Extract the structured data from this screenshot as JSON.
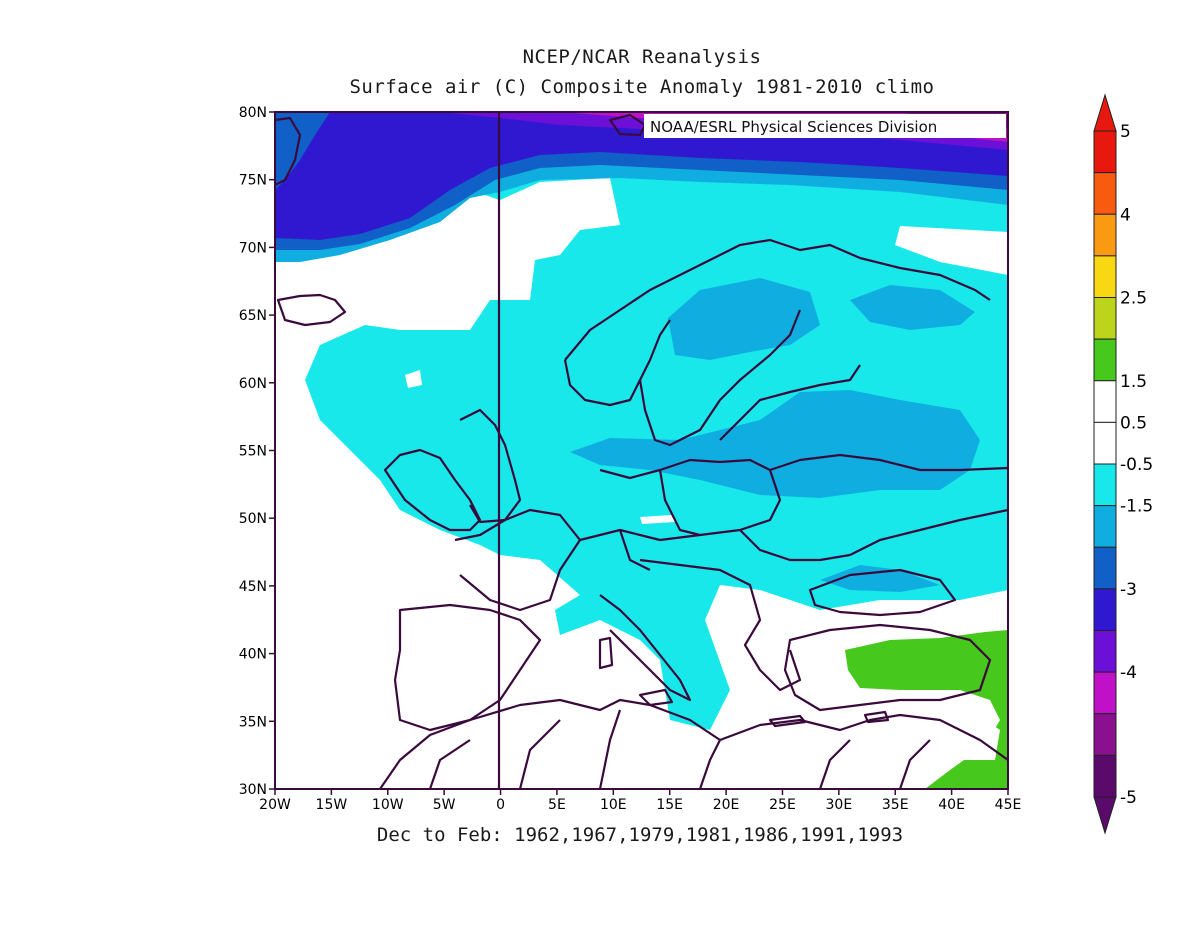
{
  "map": {
    "title": "NCEP/NCAR Reanalysis",
    "subtitle": "Surface air (C) Composite Anomaly 1981-2010 climo",
    "credit": "NOAA/ESRL Physical Sciences Division",
    "caption": "Dec to Feb: 1962,1967,1979,1981,1986,1991,1993",
    "lat_labels": [
      "80N",
      "75N",
      "70N",
      "65N",
      "60N",
      "55N",
      "50N",
      "45N",
      "40N",
      "35N",
      "30N"
    ],
    "lon_labels": [
      "20W",
      "15W",
      "10W",
      "5W",
      "0",
      "5E",
      "10E",
      "15E",
      "20E",
      "25E",
      "30E",
      "35E",
      "40E",
      "45E"
    ],
    "extent": {
      "lon_min": -20,
      "lon_max": 45,
      "lat_min": 30,
      "lat_max": 80
    }
  },
  "legend": {
    "labels": [
      "5",
      "4",
      "2.5",
      "1.5",
      "0.5",
      "-0.5",
      "-1.5",
      "-3",
      "-4",
      "-5"
    ],
    "colors": [
      "#e8180f",
      "#f85a10",
      "#fa9a12",
      "#f8d812",
      "#bcd41c",
      "#46c81c",
      "#ffffff",
      "#ffffff",
      "#18e8ea",
      "#10aee0",
      "#1060c8",
      "#3018d0",
      "#6c10d8",
      "#c010c8",
      "#8a1090",
      "#5a0a6a"
    ],
    "top_color": "#e8180f",
    "bottom_color": "#5a0a6a"
  }
}
